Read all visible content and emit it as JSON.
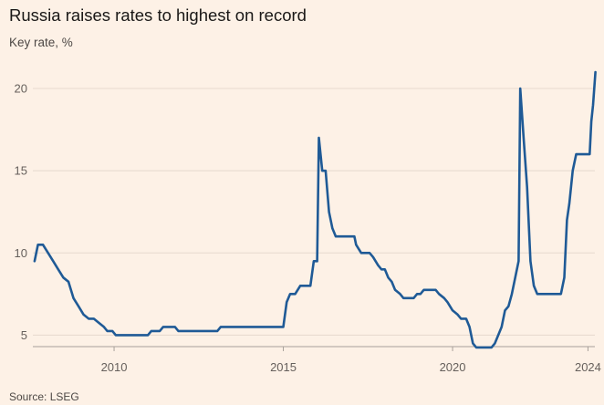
{
  "title": "Russia raises rates to highest on record",
  "subtitle": "Key rate, %",
  "source": "Source: LSEG",
  "colors": {
    "background": "#fdf1e6",
    "line": "#1f5a96",
    "grid": "#e6d9ce",
    "axis": "#a8a09a"
  },
  "chart_data": {
    "type": "line",
    "title": "Russia raises rates to highest on record",
    "ylabel": "Key rate, %",
    "xlabel": "",
    "xlim": [
      2007.6,
      2024.15
    ],
    "ylim": [
      4.3,
      21.5
    ],
    "x_ticks": [
      2010,
      2015,
      2020,
      2024
    ],
    "x_tick_labels": [
      "2010",
      "2015",
      "2020",
      "2024"
    ],
    "y_ticks": [
      5,
      10,
      15,
      20
    ],
    "y_tick_labels": [
      "5",
      "10",
      "15",
      "20"
    ],
    "grid": "horizontal",
    "legend": "none",
    "series": [
      {
        "values": [
          [
            2007.65,
            9.5
          ],
          [
            2007.75,
            10.5
          ],
          [
            2007.9,
            10.5
          ],
          [
            2008.05,
            10.0
          ],
          [
            2008.2,
            9.5
          ],
          [
            2008.35,
            9.0
          ],
          [
            2008.5,
            8.5
          ],
          [
            2008.65,
            8.25
          ],
          [
            2008.8,
            7.25
          ],
          [
            2008.95,
            6.75
          ],
          [
            2009.1,
            6.25
          ],
          [
            2009.25,
            6.0
          ],
          [
            2009.4,
            6.0
          ],
          [
            2009.55,
            5.75
          ],
          [
            2009.7,
            5.5
          ],
          [
            2009.8,
            5.25
          ],
          [
            2009.95,
            5.25
          ],
          [
            2010.05,
            5.0
          ],
          [
            2010.2,
            5.0
          ],
          [
            2010.4,
            5.0
          ],
          [
            2010.6,
            5.0
          ],
          [
            2010.8,
            5.0
          ],
          [
            2011.0,
            5.0
          ],
          [
            2011.1,
            5.25
          ],
          [
            2011.35,
            5.25
          ],
          [
            2011.45,
            5.5
          ],
          [
            2011.8,
            5.5
          ],
          [
            2011.9,
            5.25
          ],
          [
            2012.2,
            5.25
          ],
          [
            2012.5,
            5.25
          ],
          [
            2012.8,
            5.25
          ],
          [
            2013.05,
            5.25
          ],
          [
            2013.15,
            5.5
          ],
          [
            2013.5,
            5.5
          ],
          [
            2014.0,
            5.5
          ],
          [
            2014.5,
            5.5
          ],
          [
            2014.9,
            5.5
          ],
          [
            2015.0,
            5.5
          ],
          [
            2015.1,
            7.0
          ],
          [
            2015.2,
            7.5
          ],
          [
            2015.35,
            7.5
          ],
          [
            2015.5,
            8.0
          ],
          [
            2015.8,
            8.0
          ],
          [
            2015.9,
            9.5
          ],
          [
            2016.0,
            9.5
          ],
          [
            2016.05,
            17.0
          ],
          [
            2016.15,
            15.0
          ],
          [
            2016.25,
            15.0
          ],
          [
            2016.35,
            12.5
          ],
          [
            2016.45,
            11.5
          ],
          [
            2016.55,
            11.0
          ],
          [
            2016.7,
            11.0
          ],
          [
            2016.9,
            11.0
          ],
          [
            2017.1,
            11.0
          ],
          [
            2017.15,
            10.5
          ],
          [
            2017.3,
            10.0
          ],
          [
            2017.55,
            10.0
          ],
          [
            2017.65,
            9.75
          ],
          [
            2017.8,
            9.25
          ],
          [
            2017.9,
            9.0
          ],
          [
            2018.0,
            9.0
          ],
          [
            2018.1,
            8.5
          ],
          [
            2018.2,
            8.25
          ],
          [
            2018.3,
            7.75
          ],
          [
            2018.45,
            7.5
          ],
          [
            2018.55,
            7.25
          ],
          [
            2018.7,
            7.25
          ],
          [
            2018.85,
            7.25
          ],
          [
            2018.95,
            7.5
          ],
          [
            2019.05,
            7.5
          ],
          [
            2019.15,
            7.75
          ],
          [
            2019.5,
            7.75
          ],
          [
            2019.6,
            7.5
          ],
          [
            2019.75,
            7.25
          ],
          [
            2019.85,
            7.0
          ],
          [
            2020.0,
            6.5
          ],
          [
            2020.15,
            6.25
          ],
          [
            2020.25,
            6.0
          ],
          [
            2020.4,
            6.0
          ],
          [
            2020.5,
            5.5
          ],
          [
            2020.6,
            4.5
          ],
          [
            2020.7,
            4.25
          ],
          [
            2020.85,
            4.25
          ],
          [
            2021.0,
            4.25
          ],
          [
            2021.15,
            4.25
          ],
          [
            2021.25,
            4.5
          ],
          [
            2021.35,
            5.0
          ],
          [
            2021.45,
            5.5
          ],
          [
            2021.55,
            6.5
          ],
          [
            2021.65,
            6.75
          ],
          [
            2021.75,
            7.5
          ],
          [
            2021.85,
            8.5
          ],
          [
            2021.95,
            9.5
          ],
          [
            2022.0,
            20.0
          ],
          [
            2022.1,
            17.0
          ],
          [
            2022.2,
            14.0
          ],
          [
            2022.3,
            9.5
          ],
          [
            2022.4,
            8.0
          ],
          [
            2022.5,
            7.5
          ],
          [
            2022.7,
            7.5
          ],
          [
            2022.9,
            7.5
          ],
          [
            2023.1,
            7.5
          ],
          [
            2023.2,
            7.5
          ],
          [
            2023.3,
            8.5
          ],
          [
            2023.38,
            12.0
          ],
          [
            2023.45,
            13.0
          ],
          [
            2023.55,
            15.0
          ],
          [
            2023.65,
            16.0
          ],
          [
            2023.8,
            16.0
          ],
          [
            2023.9,
            16.0
          ],
          [
            2024.0,
            16.0
          ],
          [
            2024.05,
            16.0
          ],
          [
            2024.1,
            18.0
          ],
          [
            2024.15,
            19.0
          ],
          [
            2024.22,
            21.0
          ]
        ]
      }
    ]
  }
}
